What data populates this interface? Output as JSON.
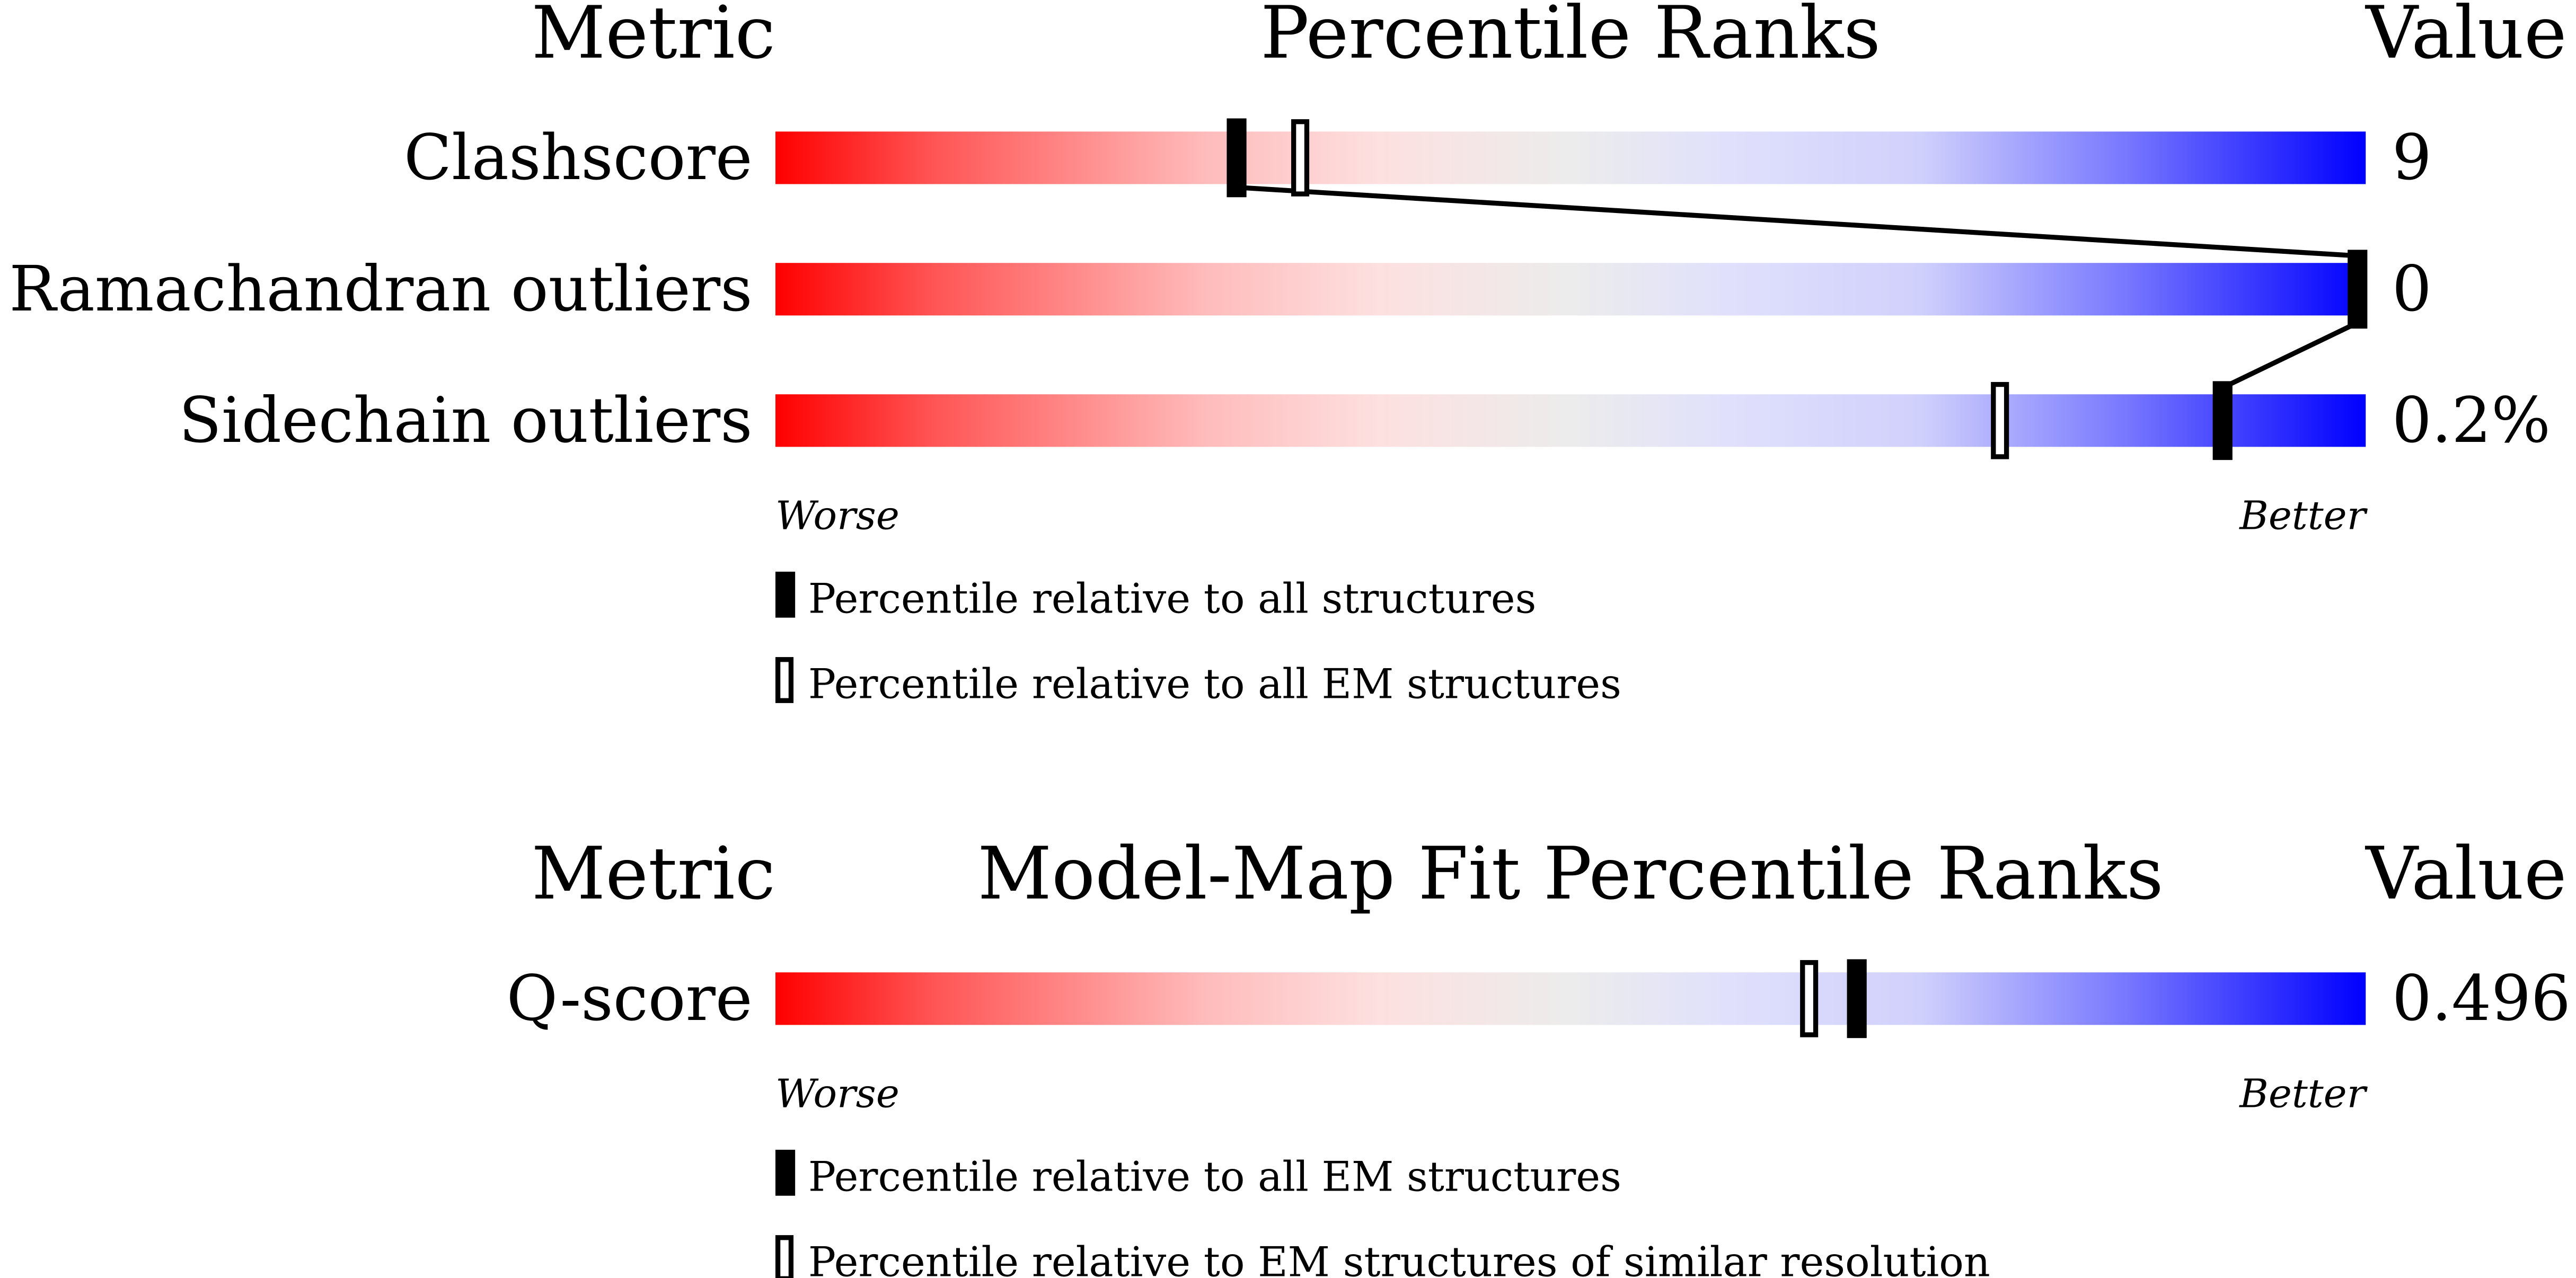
{
  "chart_data": [
    {
      "type": "percentile-bar",
      "header": {
        "metric": "Metric",
        "title": "Percentile Ranks",
        "value": "Value"
      },
      "xlim": [
        0,
        100
      ],
      "rows": [
        {
          "label": "Clashscore",
          "value": "9",
          "percentile_all": 29,
          "percentile_em": 33
        },
        {
          "label": "Ramachandran outliers",
          "value": "0",
          "percentile_all": 100,
          "percentile_em": 100
        },
        {
          "label": "Sidechain outliers",
          "value": "0.2%",
          "percentile_all": 91,
          "percentile_em": 77
        }
      ],
      "axis": {
        "worse": "Worse",
        "better": "Better"
      },
      "legend": [
        {
          "marker": "filled",
          "label": "Percentile relative to all structures"
        },
        {
          "marker": "open",
          "label": "Percentile relative to all EM structures"
        }
      ],
      "connect_filled": true
    },
    {
      "type": "percentile-bar",
      "header": {
        "metric": "Metric",
        "title": "Model-Map Fit Percentile Ranks",
        "value": "Value"
      },
      "xlim": [
        0,
        100
      ],
      "rows": [
        {
          "label": "Q-score",
          "value": "0.496",
          "percentile_all": 68,
          "percentile_em": 65
        }
      ],
      "axis": {
        "worse": "Worse",
        "better": "Better"
      },
      "legend": [
        {
          "marker": "filled",
          "label": "Percentile relative to all EM structures"
        },
        {
          "marker": "open",
          "label": "Percentile relative to EM structures of similar resolution"
        }
      ],
      "connect_filled": false
    }
  ],
  "colors": {
    "worse": "#ff0000",
    "better": "#0000ff",
    "mid": "#eeeeee",
    "marker": "#000000"
  }
}
